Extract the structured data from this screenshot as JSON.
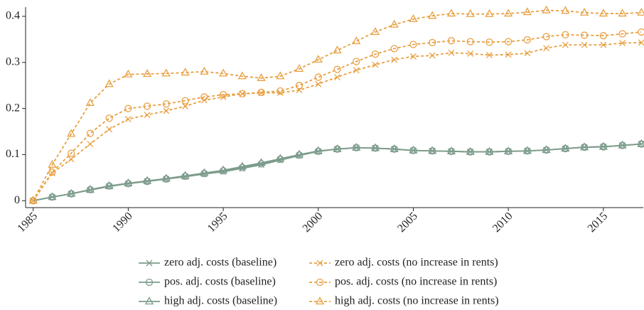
{
  "chart_data": {
    "type": "line",
    "x": [
      1985,
      1986,
      1987,
      1988,
      1989,
      1990,
      1991,
      1992,
      1993,
      1994,
      1995,
      1996,
      1997,
      1998,
      1999,
      2000,
      2001,
      2002,
      2003,
      2004,
      2005,
      2006,
      2007,
      2008,
      2009,
      2010,
      2011,
      2012,
      2013,
      2014,
      2015,
      2016,
      2017
    ],
    "xlim": [
      1984.6,
      2017.1
    ],
    "xticks": [
      1985,
      1990,
      1995,
      2000,
      2005,
      2010,
      2015
    ],
    "ylim": [
      -0.015,
      0.42
    ],
    "yticks": [
      0,
      0.1,
      0.2,
      0.3,
      0.4
    ],
    "grid": false,
    "series": [
      {
        "name": "zero adj. costs (baseline)",
        "color": "#7d9c8c",
        "marker": "x",
        "dashed": false,
        "values": [
          0,
          0.008,
          0.015,
          0.023,
          0.031,
          0.037,
          0.042,
          0.047,
          0.052,
          0.058,
          0.063,
          0.07,
          0.078,
          0.088,
          0.098,
          0.107,
          0.112,
          0.115,
          0.114,
          0.112,
          0.109,
          0.108,
          0.107,
          0.106,
          0.106,
          0.107,
          0.108,
          0.11,
          0.113,
          0.116,
          0.117,
          0.12,
          0.123
        ]
      },
      {
        "name": "pos. adj. costs (baseline)",
        "color": "#7d9c8c",
        "marker": "circle",
        "dashed": false,
        "values": [
          0,
          0.008,
          0.015,
          0.024,
          0.032,
          0.037,
          0.042,
          0.047,
          0.053,
          0.059,
          0.065,
          0.072,
          0.08,
          0.09,
          0.099,
          0.107,
          0.112,
          0.115,
          0.114,
          0.112,
          0.109,
          0.108,
          0.107,
          0.106,
          0.106,
          0.107,
          0.108,
          0.11,
          0.113,
          0.116,
          0.117,
          0.12,
          0.123
        ]
      },
      {
        "name": "high adj. costs (baseline)",
        "color": "#7d9c8c",
        "marker": "triangle",
        "dashed": false,
        "values": [
          0,
          0.008,
          0.015,
          0.024,
          0.032,
          0.038,
          0.043,
          0.048,
          0.054,
          0.06,
          0.066,
          0.074,
          0.082,
          0.091,
          0.1,
          0.108,
          0.112,
          0.115,
          0.114,
          0.112,
          0.109,
          0.108,
          0.107,
          0.106,
          0.106,
          0.107,
          0.108,
          0.11,
          0.113,
          0.116,
          0.117,
          0.12,
          0.123
        ]
      },
      {
        "name": "zero adj. costs (no increase in rents)",
        "color": "#e9a042",
        "marker": "x",
        "dashed": true,
        "values": [
          0,
          0.06,
          0.09,
          0.123,
          0.155,
          0.177,
          0.186,
          0.195,
          0.205,
          0.218,
          0.225,
          0.232,
          0.234,
          0.234,
          0.24,
          0.253,
          0.268,
          0.283,
          0.295,
          0.306,
          0.313,
          0.315,
          0.321,
          0.319,
          0.316,
          0.317,
          0.32,
          0.331,
          0.338,
          0.338,
          0.338,
          0.342,
          0.343
        ]
      },
      {
        "name": "pos. adj. costs (no increase in rents)",
        "color": "#e9a042",
        "marker": "circle",
        "dashed": true,
        "values": [
          0,
          0.062,
          0.103,
          0.146,
          0.179,
          0.2,
          0.205,
          0.21,
          0.217,
          0.225,
          0.23,
          0.232,
          0.235,
          0.238,
          0.25,
          0.268,
          0.285,
          0.302,
          0.318,
          0.33,
          0.339,
          0.343,
          0.347,
          0.345,
          0.344,
          0.345,
          0.349,
          0.356,
          0.36,
          0.359,
          0.358,
          0.362,
          0.366
        ]
      },
      {
        "name": "high adj. costs (no increase in rents)",
        "color": "#e9a042",
        "marker": "triangle",
        "dashed": true,
        "values": [
          0,
          0.078,
          0.145,
          0.212,
          0.253,
          0.274,
          0.275,
          0.276,
          0.278,
          0.28,
          0.276,
          0.27,
          0.266,
          0.27,
          0.286,
          0.306,
          0.326,
          0.346,
          0.366,
          0.382,
          0.394,
          0.401,
          0.406,
          0.405,
          0.405,
          0.406,
          0.409,
          0.413,
          0.412,
          0.408,
          0.406,
          0.406,
          0.408
        ]
      }
    ]
  }
}
